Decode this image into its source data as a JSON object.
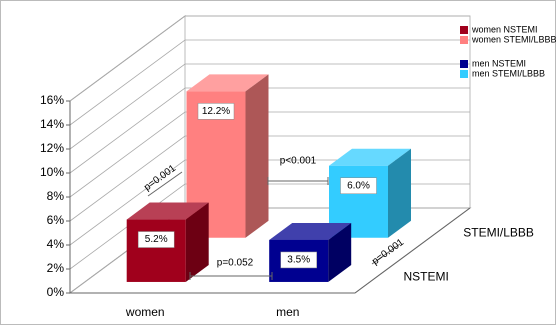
{
  "chart_data": {
    "type": "bar3d",
    "categories": [
      "women",
      "men"
    ],
    "depth_categories": [
      "NSTEMI",
      "STEMI/LBBB"
    ],
    "series": [
      {
        "name": "women NSTEMI",
        "color": "#a0001c",
        "depth": "NSTEMI",
        "values": [
          5.2,
          null
        ],
        "value_labels": [
          "5.2%",
          null
        ]
      },
      {
        "name": "women STEMI/LBBB",
        "color": "#ff8080",
        "depth": "STEMI/LBBB",
        "values": [
          12.2,
          null
        ],
        "value_labels": [
          "12.2%",
          null
        ]
      },
      {
        "name": "men NSTEMI",
        "color": "#000090",
        "depth": "NSTEMI",
        "values": [
          null,
          3.5
        ],
        "value_labels": [
          null,
          "3.5%"
        ]
      },
      {
        "name": "men STEMI/LBBB",
        "color": "#33ccff",
        "depth": "STEMI/LBBB",
        "values": [
          null,
          6.0
        ],
        "value_labels": [
          null,
          "6.0%"
        ]
      }
    ],
    "ylim": [
      0,
      16
    ],
    "yticks": [
      {
        "value": 0,
        "label": "0%"
      },
      {
        "value": 2,
        "label": "2%"
      },
      {
        "value": 4,
        "label": "4%"
      },
      {
        "value": 6,
        "label": "6%"
      },
      {
        "value": 8,
        "label": "8%"
      },
      {
        "value": 10,
        "label": "10%"
      },
      {
        "value": 12,
        "label": "12%"
      },
      {
        "value": 14,
        "label": "14%"
      },
      {
        "value": 16,
        "label": "16%"
      }
    ],
    "grid": true,
    "annotations": [
      "p=0.001",
      "p<0.001",
      "p=0.052",
      "p=0.001"
    ]
  }
}
